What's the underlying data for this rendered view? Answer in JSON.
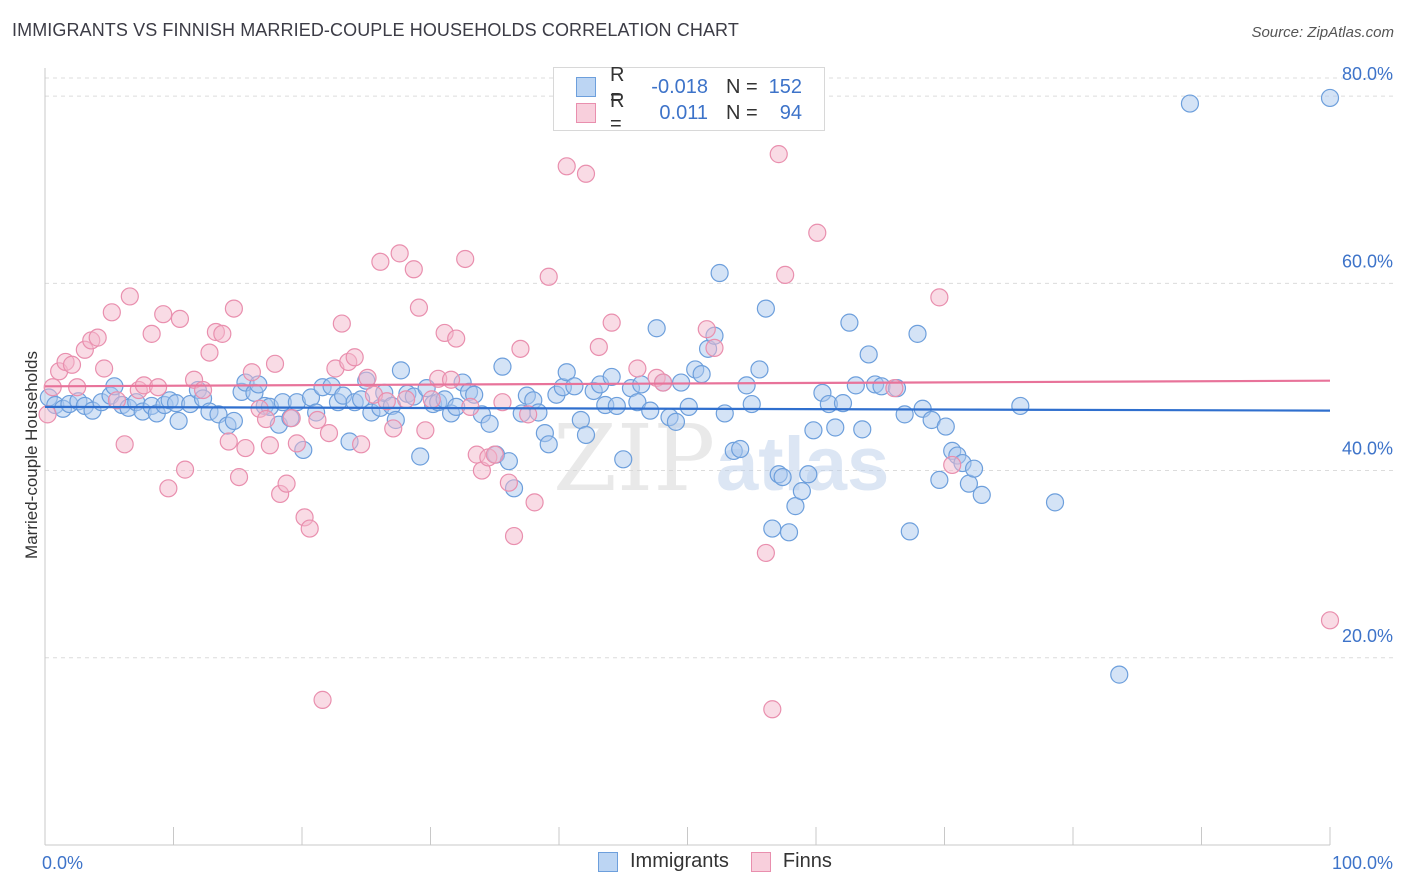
{
  "title": "IMMIGRANTS VS FINNISH MARRIED-COUPLE HOUSEHOLDS CORRELATION CHART",
  "source": "Source: ZipAtlas.com",
  "watermark": {
    "zip": "ZIP",
    "atlas": "atlas"
  },
  "colors": {
    "blue_fill": "#a9c8ee",
    "blue_stroke": "#6d9fdc",
    "blue_line": "#2f6fce",
    "pink_fill": "#f4b8cb",
    "pink_stroke": "#e98fae",
    "pink_line": "#e8739a",
    "tick_label": "#3d73c9",
    "grid": "#dcdcdc"
  },
  "legend": {
    "rows": [
      {
        "r_label": "R =",
        "r_value": "-0.018",
        "n_label": "N =",
        "n_value": "152"
      },
      {
        "r_label": "R =",
        "r_value": "0.011",
        "n_label": "N =",
        "n_value": "94"
      }
    ]
  },
  "bottom_legend": [
    "Immigrants",
    "Finns"
  ],
  "chart_data": {
    "type": "scatter",
    "xlabel": "",
    "ylabel": "Married-couple Households",
    "xlim": [
      0,
      100
    ],
    "ylim": [
      0,
      83
    ],
    "x_ticks": [
      "0.0%",
      "100.0%"
    ],
    "y_ticks": [
      {
        "v": 20,
        "label": "20.0%"
      },
      {
        "v": 40,
        "label": "40.0%"
      },
      {
        "v": 60,
        "label": "60.0%"
      },
      {
        "v": 80,
        "label": "80.0%"
      }
    ],
    "grid": true,
    "series": [
      {
        "name": "Immigrants",
        "trend": [
          [
            0,
            46.8
          ],
          [
            100,
            46.4
          ]
        ],
        "points": [
          [
            0.3,
            47.8
          ],
          [
            0.8,
            47.0
          ],
          [
            1.4,
            46.6
          ],
          [
            1.9,
            47.1
          ],
          [
            2.6,
            47.4
          ],
          [
            3.1,
            46.9
          ],
          [
            3.7,
            46.4
          ],
          [
            4.4,
            47.3
          ],
          [
            5.1,
            48.0
          ],
          [
            5.4,
            49.0
          ],
          [
            6.0,
            47.0
          ],
          [
            6.5,
            46.7
          ],
          [
            7.1,
            47.3
          ],
          [
            7.6,
            46.3
          ],
          [
            8.3,
            46.9
          ],
          [
            8.7,
            46.1
          ],
          [
            9.3,
            47.0
          ],
          [
            9.7,
            47.5
          ],
          [
            10.2,
            47.2
          ],
          [
            10.4,
            45.3
          ],
          [
            11.3,
            47.1
          ],
          [
            11.9,
            48.6
          ],
          [
            12.3,
            47.7
          ],
          [
            12.8,
            46.3
          ],
          [
            13.5,
            46.0
          ],
          [
            14.2,
            44.8
          ],
          [
            14.7,
            45.3
          ],
          [
            15.3,
            48.4
          ],
          [
            15.6,
            49.4
          ],
          [
            16.3,
            48.3
          ],
          [
            16.6,
            49.2
          ],
          [
            17.1,
            46.9
          ],
          [
            17.5,
            46.8
          ],
          [
            18.2,
            44.9
          ],
          [
            18.5,
            47.3
          ],
          [
            19.1,
            45.6
          ],
          [
            19.6,
            47.3
          ],
          [
            20.1,
            42.2
          ],
          [
            20.7,
            47.8
          ],
          [
            21.1,
            46.2
          ],
          [
            21.6,
            48.9
          ],
          [
            22.3,
            49.0
          ],
          [
            22.8,
            47.3
          ],
          [
            23.2,
            48.0
          ],
          [
            23.7,
            43.1
          ],
          [
            24.1,
            47.3
          ],
          [
            24.6,
            47.6
          ],
          [
            25.0,
            49.6
          ],
          [
            25.4,
            46.2
          ],
          [
            26.1,
            46.7
          ],
          [
            26.4,
            48.3
          ],
          [
            27.0,
            46.9
          ],
          [
            27.3,
            45.4
          ],
          [
            27.7,
            50.7
          ],
          [
            28.2,
            48.2
          ],
          [
            28.7,
            47.9
          ],
          [
            29.2,
            41.5
          ],
          [
            29.7,
            48.8
          ],
          [
            30.2,
            47.1
          ],
          [
            30.6,
            47.3
          ],
          [
            31.1,
            47.6
          ],
          [
            31.6,
            46.1
          ],
          [
            32.0,
            46.8
          ],
          [
            32.5,
            49.4
          ],
          [
            33.0,
            48.4
          ],
          [
            33.4,
            48.1
          ],
          [
            34.0,
            46.0
          ],
          [
            34.6,
            45.0
          ],
          [
            35.1,
            41.7
          ],
          [
            35.6,
            51.1
          ],
          [
            36.1,
            41.0
          ],
          [
            36.5,
            38.1
          ],
          [
            37.1,
            46.1
          ],
          [
            37.5,
            48.0
          ],
          [
            38.0,
            47.5
          ],
          [
            38.4,
            46.2
          ],
          [
            38.9,
            44.0
          ],
          [
            39.2,
            42.8
          ],
          [
            39.8,
            48.1
          ],
          [
            40.3,
            48.9
          ],
          [
            40.6,
            50.5
          ],
          [
            41.2,
            49.0
          ],
          [
            41.7,
            45.4
          ],
          [
            42.1,
            43.8
          ],
          [
            42.7,
            48.5
          ],
          [
            43.2,
            49.2
          ],
          [
            43.6,
            47.0
          ],
          [
            44.1,
            50.0
          ],
          [
            44.5,
            46.9
          ],
          [
            45.0,
            41.2
          ],
          [
            45.6,
            48.8
          ],
          [
            46.1,
            47.3
          ],
          [
            46.4,
            49.2
          ],
          [
            47.1,
            46.4
          ],
          [
            47.6,
            55.2
          ],
          [
            48.1,
            49.4
          ],
          [
            48.6,
            45.7
          ],
          [
            49.1,
            45.2
          ],
          [
            49.5,
            49.4
          ],
          [
            50.1,
            46.8
          ],
          [
            50.6,
            50.8
          ],
          [
            51.1,
            50.3
          ],
          [
            51.6,
            53.0
          ],
          [
            52.1,
            54.4
          ],
          [
            52.5,
            61.1
          ],
          [
            52.9,
            46.1
          ],
          [
            53.6,
            42.1
          ],
          [
            54.1,
            42.3
          ],
          [
            54.6,
            49.1
          ],
          [
            55.0,
            47.1
          ],
          [
            55.6,
            50.8
          ],
          [
            56.1,
            57.3
          ],
          [
            56.6,
            33.8
          ],
          [
            57.1,
            39.6
          ],
          [
            57.4,
            39.3
          ],
          [
            57.9,
            33.4
          ],
          [
            58.4,
            36.2
          ],
          [
            58.9,
            37.8
          ],
          [
            59.4,
            39.6
          ],
          [
            59.8,
            44.3
          ],
          [
            60.5,
            48.3
          ],
          [
            61.0,
            47.1
          ],
          [
            61.5,
            44.6
          ],
          [
            62.1,
            47.2
          ],
          [
            62.6,
            55.8
          ],
          [
            63.1,
            49.1
          ],
          [
            63.6,
            44.4
          ],
          [
            64.1,
            52.4
          ],
          [
            64.6,
            49.2
          ],
          [
            65.1,
            49.0
          ],
          [
            66.3,
            48.8
          ],
          [
            66.9,
            46.0
          ],
          [
            67.3,
            33.5
          ],
          [
            67.9,
            54.6
          ],
          [
            68.3,
            46.6
          ],
          [
            69.0,
            45.4
          ],
          [
            69.6,
            39.0
          ],
          [
            70.1,
            44.7
          ],
          [
            70.6,
            42.1
          ],
          [
            71.0,
            41.6
          ],
          [
            71.4,
            40.8
          ],
          [
            71.9,
            38.6
          ],
          [
            72.3,
            40.2
          ],
          [
            72.9,
            37.4
          ],
          [
            75.9,
            46.9
          ],
          [
            78.6,
            36.6
          ],
          [
            83.6,
            18.2
          ],
          [
            89.1,
            79.2
          ],
          [
            100,
            79.8
          ]
        ]
      },
      {
        "name": "Finns",
        "trend": [
          [
            0,
            49.0
          ],
          [
            100,
            49.6
          ]
        ],
        "points": [
          [
            0.2,
            46.0
          ],
          [
            0.6,
            48.9
          ],
          [
            1.1,
            50.6
          ],
          [
            1.6,
            51.6
          ],
          [
            2.1,
            51.3
          ],
          [
            2.5,
            48.9
          ],
          [
            3.1,
            52.9
          ],
          [
            3.6,
            53.9
          ],
          [
            4.1,
            54.2
          ],
          [
            4.6,
            50.9
          ],
          [
            5.2,
            56.9
          ],
          [
            5.6,
            47.5
          ],
          [
            6.2,
            42.8
          ],
          [
            6.6,
            58.6
          ],
          [
            7.3,
            48.6
          ],
          [
            7.7,
            49.1
          ],
          [
            8.3,
            54.6
          ],
          [
            8.8,
            48.9
          ],
          [
            9.2,
            56.7
          ],
          [
            9.6,
            38.1
          ],
          [
            10.5,
            56.2
          ],
          [
            10.9,
            40.1
          ],
          [
            11.6,
            49.7
          ],
          [
            12.3,
            48.6
          ],
          [
            12.8,
            52.6
          ],
          [
            13.3,
            54.8
          ],
          [
            13.8,
            54.6
          ],
          [
            14.3,
            43.1
          ],
          [
            14.7,
            57.3
          ],
          [
            15.1,
            39.3
          ],
          [
            15.6,
            42.4
          ],
          [
            16.1,
            50.5
          ],
          [
            16.7,
            46.6
          ],
          [
            17.2,
            45.5
          ],
          [
            17.5,
            42.7
          ],
          [
            17.9,
            51.4
          ],
          [
            18.3,
            37.5
          ],
          [
            18.8,
            38.6
          ],
          [
            19.2,
            45.6
          ],
          [
            19.6,
            42.9
          ],
          [
            20.2,
            35.0
          ],
          [
            20.6,
            33.8
          ],
          [
            21.2,
            45.4
          ],
          [
            21.6,
            15.5
          ],
          [
            22.1,
            44.0
          ],
          [
            22.6,
            50.9
          ],
          [
            23.1,
            55.7
          ],
          [
            23.6,
            51.6
          ],
          [
            24.1,
            52.1
          ],
          [
            24.6,
            42.8
          ],
          [
            25.1,
            49.9
          ],
          [
            25.6,
            48.1
          ],
          [
            26.1,
            62.3
          ],
          [
            26.6,
            47.4
          ],
          [
            27.1,
            44.5
          ],
          [
            27.6,
            63.2
          ],
          [
            28.1,
            47.6
          ],
          [
            28.7,
            61.5
          ],
          [
            29.1,
            57.4
          ],
          [
            29.6,
            44.3
          ],
          [
            30.1,
            47.6
          ],
          [
            30.6,
            49.8
          ],
          [
            31.1,
            54.7
          ],
          [
            31.6,
            49.7
          ],
          [
            32.0,
            54.1
          ],
          [
            32.7,
            62.6
          ],
          [
            33.1,
            46.8
          ],
          [
            33.6,
            41.7
          ],
          [
            34.0,
            40.0
          ],
          [
            34.5,
            41.4
          ],
          [
            35.0,
            41.7
          ],
          [
            35.6,
            47.3
          ],
          [
            36.1,
            38.7
          ],
          [
            36.5,
            33.0
          ],
          [
            37.0,
            53.0
          ],
          [
            37.6,
            46.0
          ],
          [
            38.1,
            36.6
          ],
          [
            39.2,
            60.7
          ],
          [
            40.6,
            72.5
          ],
          [
            42.1,
            71.7
          ],
          [
            43.1,
            53.2
          ],
          [
            44.1,
            55.8
          ],
          [
            46.1,
            50.9
          ],
          [
            47.6,
            49.9
          ],
          [
            48.1,
            49.4
          ],
          [
            51.5,
            55.1
          ],
          [
            52.1,
            53.1
          ],
          [
            56.1,
            31.2
          ],
          [
            57.1,
            73.8
          ],
          [
            56.6,
            14.5
          ],
          [
            57.6,
            60.9
          ],
          [
            60.1,
            65.4
          ],
          [
            66.1,
            48.8
          ],
          [
            69.6,
            58.5
          ],
          [
            70.6,
            40.6
          ],
          [
            100,
            24.0
          ]
        ]
      }
    ]
  },
  "y_axis_label": "Married-couple Households"
}
